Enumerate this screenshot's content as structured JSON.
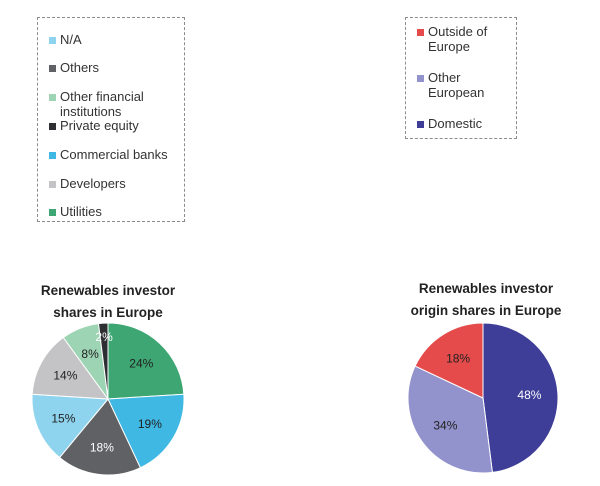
{
  "legends": {
    "investor": [
      {
        "label": "N/A",
        "color": "#8fd4ee"
      },
      {
        "label": "Others",
        "color": "#5f6165"
      },
      {
        "label": "Other financial institutions",
        "color": "#9dd4b4"
      },
      {
        "label": "Private equity",
        "color": "#2d2f33"
      },
      {
        "label": "Commercial banks",
        "color": "#3fb8e3"
      },
      {
        "label": "Developers",
        "color": "#c4c4c6"
      },
      {
        "label": "Utilities",
        "color": "#3ea673"
      }
    ],
    "origin": [
      {
        "label": "Outside of Europe",
        "color": "#e54b4b"
      },
      {
        "label": "Other European",
        "color": "#9292cc"
      },
      {
        "label": "Domestic",
        "color": "#3e3e98"
      }
    ]
  },
  "chart_data": [
    {
      "type": "pie",
      "title_lines": [
        "Renewables investor",
        "shares in Europe"
      ],
      "start_angle_deg": 0,
      "direction": "clockwise",
      "slices": [
        {
          "label": "Utilities",
          "value": 24,
          "display": "24%",
          "color": "#3ea673",
          "text_color": "#222222"
        },
        {
          "label": "Commercial banks",
          "value": 19,
          "display": "19%",
          "color": "#3fb8e3",
          "text_color": "#222222"
        },
        {
          "label": "Others",
          "value": 18,
          "display": "18%",
          "color": "#5f6165",
          "text_color": "#ffffff"
        },
        {
          "label": "N/A",
          "value": 15,
          "display": "15%",
          "color": "#8fd4ee",
          "text_color": "#222222"
        },
        {
          "label": "Developers",
          "value": 14,
          "display": "14%",
          "color": "#c4c4c6",
          "text_color": "#222222"
        },
        {
          "label": "Other financial institutions",
          "value": 8,
          "display": "8%",
          "color": "#9dd4b4",
          "text_color": "#222222"
        },
        {
          "label": "Private equity",
          "value": 2,
          "display": "2%",
          "color": "#2d2f33",
          "text_color": "#ffffff"
        }
      ]
    },
    {
      "type": "pie",
      "title_lines": [
        "Renewables investor",
        "origin shares in Europe"
      ],
      "start_angle_deg": 0,
      "direction": "clockwise",
      "slices": [
        {
          "label": "Domestic",
          "value": 48,
          "display": "48%",
          "color": "#3e3e98",
          "text_color": "#ffffff"
        },
        {
          "label": "Other European",
          "value": 34,
          "display": "34%",
          "color": "#9292cc",
          "text_color": "#222222"
        },
        {
          "label": "Outside of Europe",
          "value": 18,
          "display": "18%",
          "color": "#e54b4b",
          "text_color": "#222222"
        }
      ]
    }
  ]
}
